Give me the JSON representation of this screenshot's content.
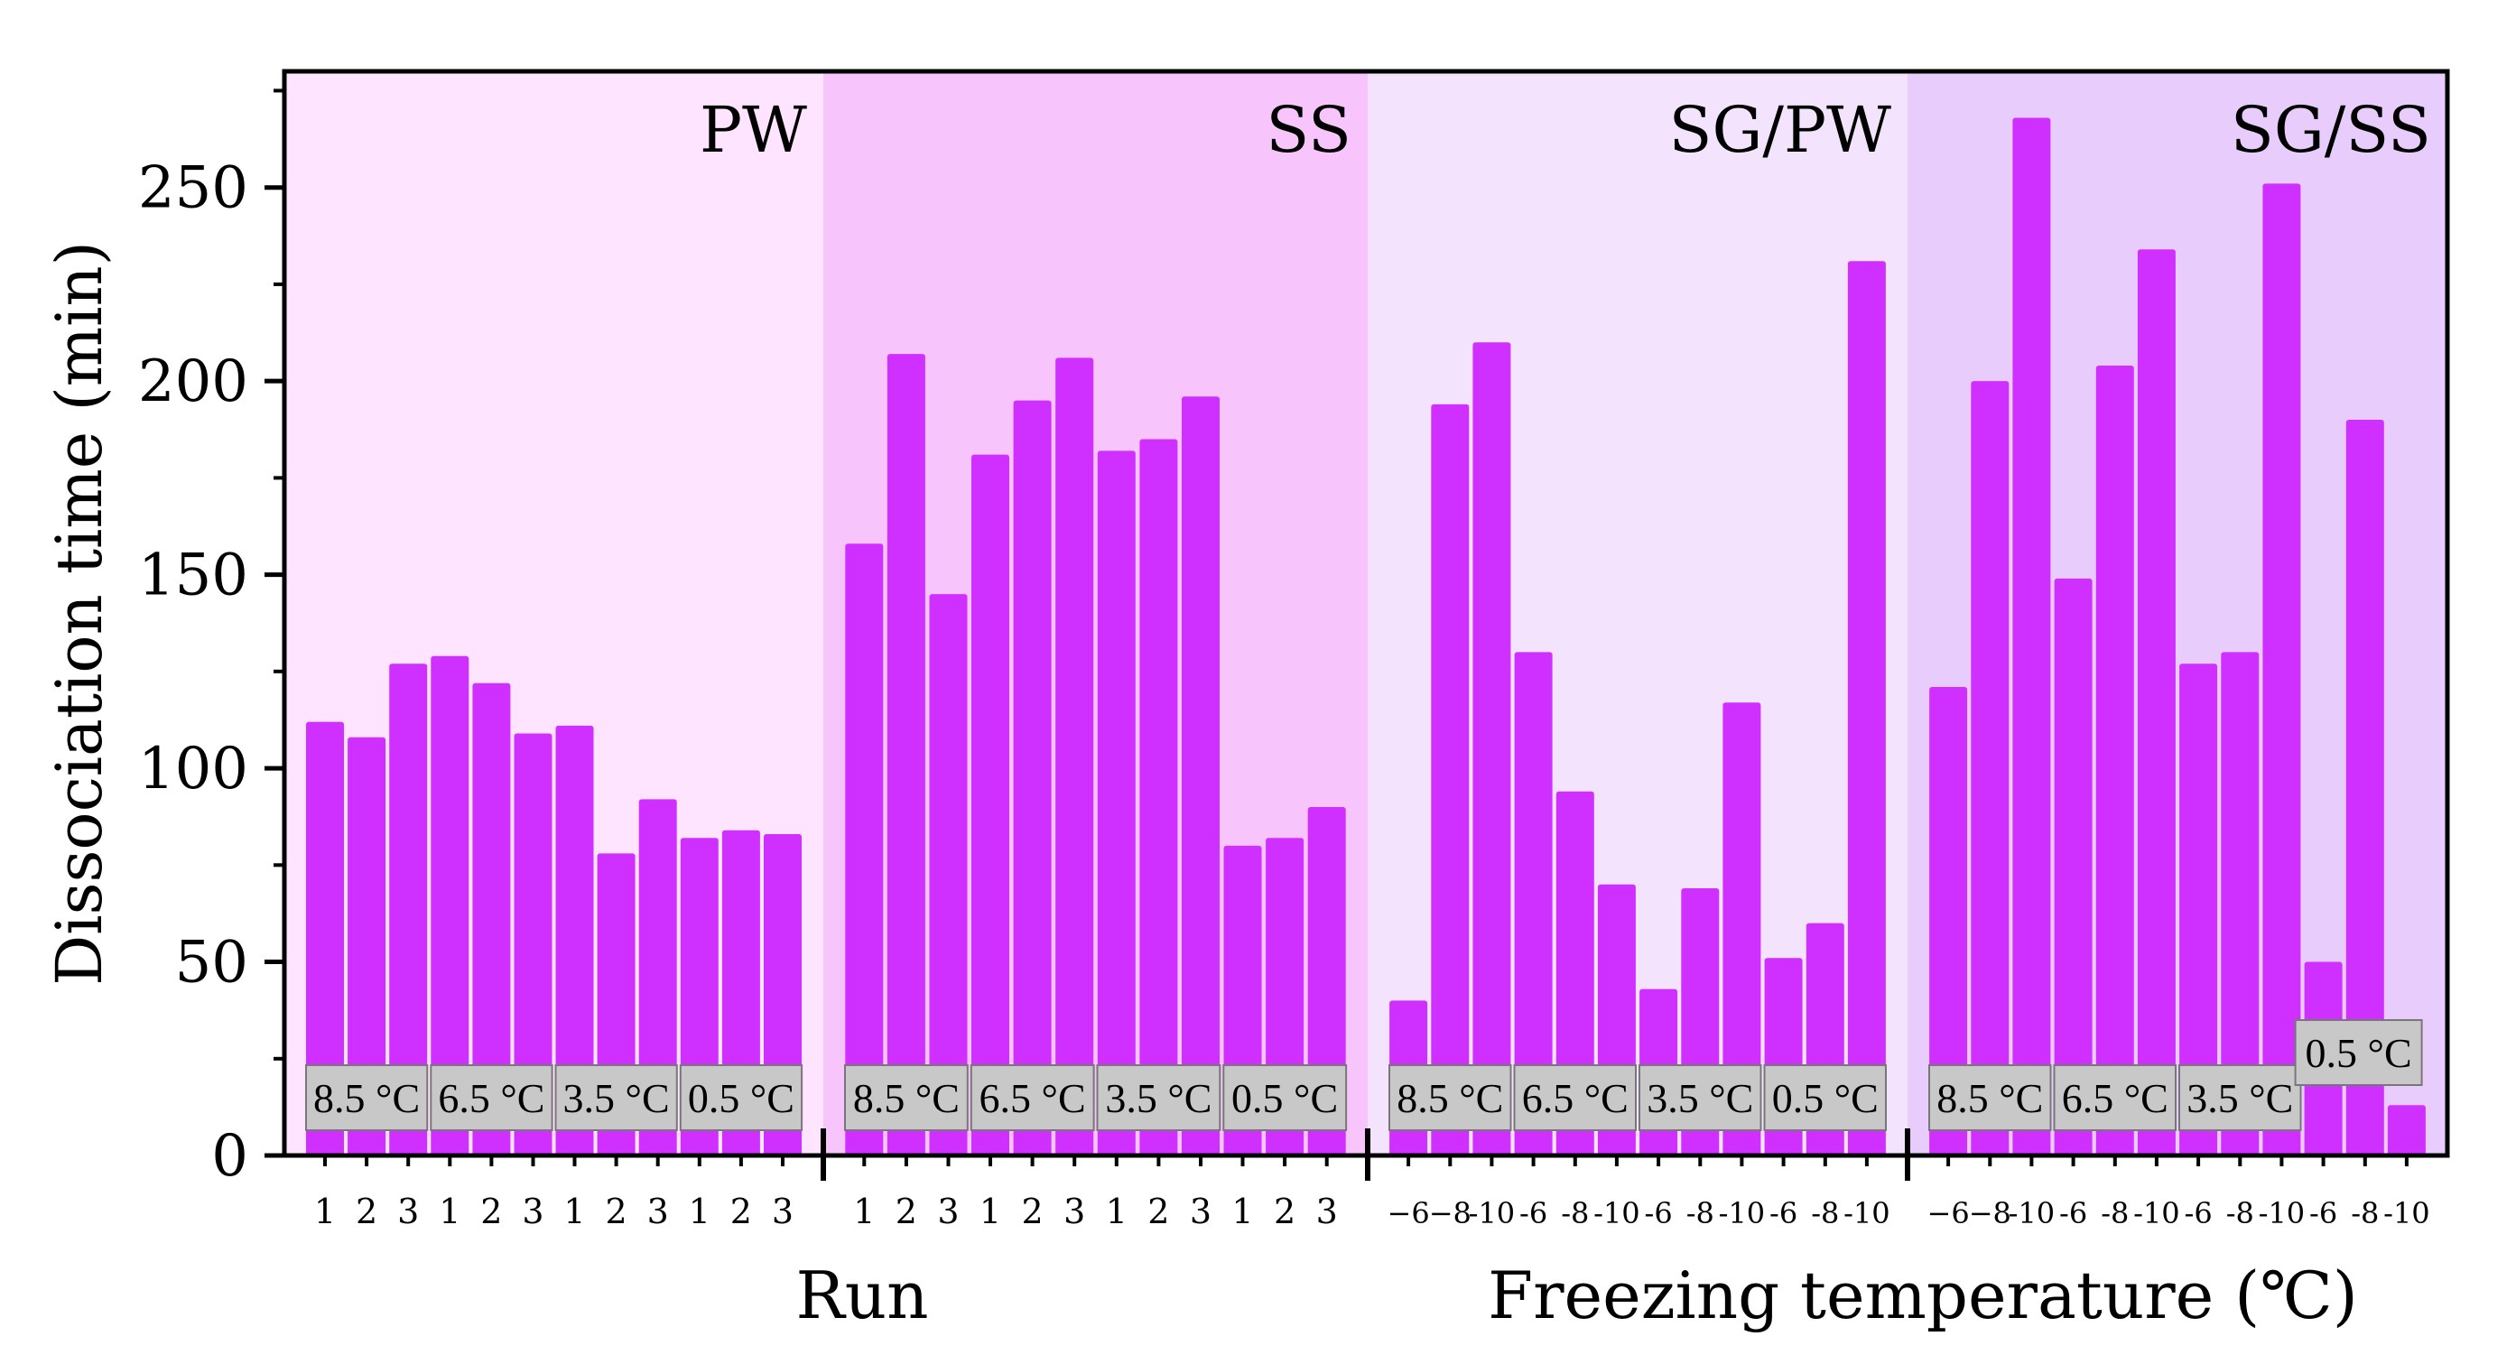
{
  "chart_data": {
    "type": "bar",
    "title": "",
    "ylabel": "Dissociation time (min)",
    "xlabel_left": "Run",
    "xlabel_right": "Freezing temperature (℃)",
    "ylim": [
      0,
      280
    ],
    "yticks": [
      0,
      50,
      100,
      150,
      200,
      250
    ],
    "panel_colors": [
      "#FFE4FF",
      "#F7C4FC",
      "#F3E3FD",
      "#E8CDFC"
    ],
    "bar_color": "#D030FF",
    "label_box_color": "#C8C8C8",
    "panels": [
      {
        "name": "PW",
        "groups": [
          {
            "condition": "8.5 °C",
            "categories": [
              "1",
              "2",
              "3"
            ],
            "values": [
              112,
              108,
              127
            ]
          },
          {
            "condition": "6.5 °C",
            "categories": [
              "1",
              "2",
              "3"
            ],
            "values": [
              129,
              122,
              109
            ]
          },
          {
            "condition": "3.5 °C",
            "categories": [
              "1",
              "2",
              "3"
            ],
            "values": [
              111,
              78,
              92
            ]
          },
          {
            "condition": "0.5 °C",
            "categories": [
              "1",
              "2",
              "3"
            ],
            "values": [
              82,
              84,
              83
            ]
          }
        ]
      },
      {
        "name": "SS",
        "groups": [
          {
            "condition": "8.5 °C",
            "categories": [
              "1",
              "2",
              "3"
            ],
            "values": [
              158,
              207,
              145
            ]
          },
          {
            "condition": "6.5 °C",
            "categories": [
              "1",
              "2",
              "3"
            ],
            "values": [
              181,
              195,
              206
            ]
          },
          {
            "condition": "3.5 °C",
            "categories": [
              "1",
              "2",
              "3"
            ],
            "values": [
              182,
              185,
              196
            ]
          },
          {
            "condition": "0.5 °C",
            "categories": [
              "1",
              "2",
              "3"
            ],
            "values": [
              80,
              82,
              90
            ]
          }
        ]
      },
      {
        "name": "SG/PW",
        "groups": [
          {
            "condition": "8.5 °C",
            "categories": [
              "−6",
              "−8",
              "-10"
            ],
            "values": [
              40,
              194,
              210
            ]
          },
          {
            "condition": "6.5 °C",
            "categories": [
              "-6",
              "-8",
              "-10"
            ],
            "values": [
              130,
              94,
              70
            ]
          },
          {
            "condition": "3.5 °C",
            "categories": [
              "-6",
              "-8",
              "-10"
            ],
            "values": [
              43,
              69,
              117
            ]
          },
          {
            "condition": "0.5 °C",
            "categories": [
              "-6",
              "-8",
              "-10"
            ],
            "values": [
              51,
              60,
              231
            ]
          }
        ]
      },
      {
        "name": "SG/SS",
        "groups": [
          {
            "condition": "8.5 °C",
            "categories": [
              "−6",
              "−8",
              "-10"
            ],
            "values": [
              121,
              200,
              268
            ]
          },
          {
            "condition": "6.5 °C",
            "categories": [
              "-6",
              "-8",
              "-10"
            ],
            "values": [
              149,
              204,
              234
            ]
          },
          {
            "condition": "3.5 °C",
            "categories": [
              "-6",
              "-8",
              "-10"
            ],
            "values": [
              127,
              130,
              251
            ]
          },
          {
            "condition": "0.5 °C",
            "categories": [
              "-6",
              "-8",
              "-10"
            ],
            "values": [
              50,
              190,
              13
            ]
          }
        ]
      }
    ]
  }
}
